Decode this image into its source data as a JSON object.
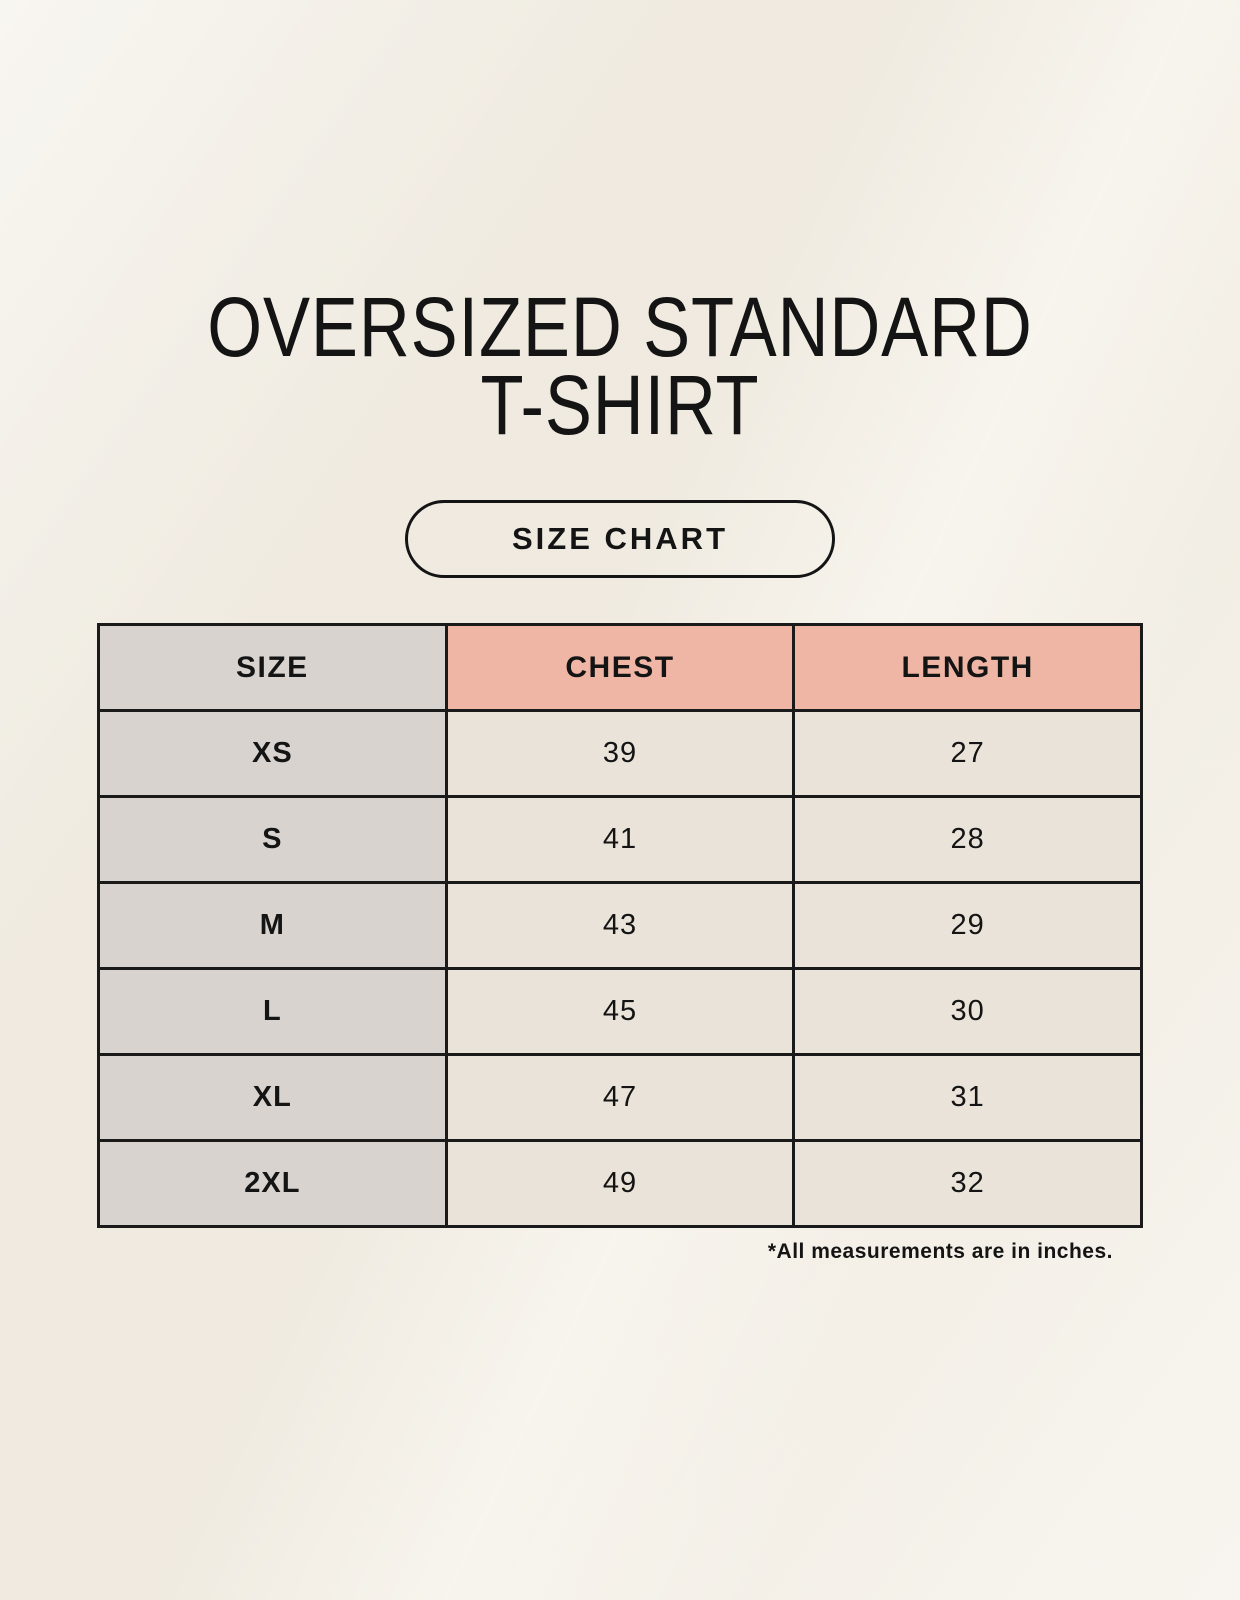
{
  "title": {
    "line1": "OVERSIZED STANDARD",
    "line2": "T-SHIRT"
  },
  "badge": {
    "label": "SIZE CHART"
  },
  "footnote": "*All measurements are in inches.",
  "colors": {
    "background": "#f5f1e8",
    "size_column": "#d9d3cf",
    "measure_header": "#efb6a5",
    "data_cell": "#eae3d9",
    "border": "#1a1a1a"
  },
  "chart_data": {
    "type": "table",
    "title": "OVERSIZED STANDARD T-SHIRT",
    "subtitle": "SIZE CHART",
    "columns": [
      "SIZE",
      "CHEST",
      "LENGTH"
    ],
    "rows": [
      [
        "XS",
        "39",
        "27"
      ],
      [
        "S",
        "41",
        "28"
      ],
      [
        "M",
        "43",
        "29"
      ],
      [
        "L",
        "45",
        "30"
      ],
      [
        "XL",
        "47",
        "31"
      ],
      [
        "2XL",
        "49",
        "32"
      ]
    ],
    "units_note": "*All measurements are in inches."
  }
}
